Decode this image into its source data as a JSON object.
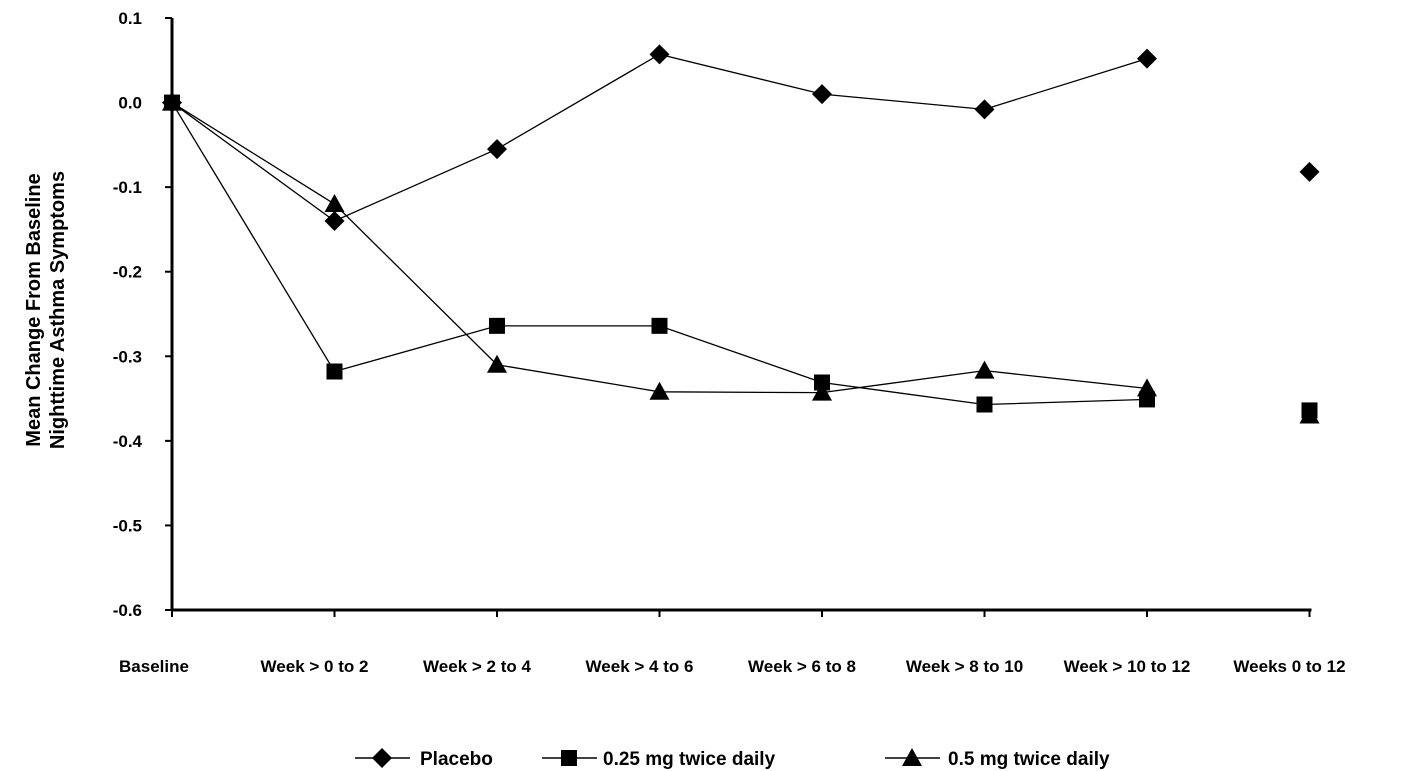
{
  "chart_data": {
    "type": "line",
    "ylabel_lines": [
      "Mean Change From Baseline",
      "Nighttime Asthma Symptoms"
    ],
    "categories": [
      "Baseline",
      "Week > 0 to 2",
      "Week > 2 to 4",
      "Week > 4 to 6",
      "Week > 6 to 8",
      "Week > 8 to 10",
      "Week > 10 to 12",
      "Weeks 0 to 12"
    ],
    "ylim": [
      -0.6,
      0.1
    ],
    "yticks": [
      0.1,
      0.0,
      -0.1,
      -0.2,
      -0.3,
      -0.4,
      -0.5,
      -0.6
    ],
    "ytick_labels": [
      "0.1",
      "0.0",
      "-0.1",
      "-0.2",
      "-0.3",
      "-0.4",
      "-0.5",
      "-0.6"
    ],
    "grid": false,
    "legend_position": "bottom",
    "series": [
      {
        "name": "Placebo",
        "marker": "diamond",
        "values": [
          0.0,
          -0.14,
          -0.055,
          0.057,
          0.01,
          -0.008,
          0.052,
          -0.082
        ],
        "connected_points": 7
      },
      {
        "name": "0.25 mg twice daily",
        "marker": "square",
        "values": [
          0.0,
          -0.318,
          -0.264,
          -0.264,
          -0.331,
          -0.357,
          -0.351,
          -0.364
        ],
        "connected_points": 7
      },
      {
        "name": "0.5 mg twice daily",
        "marker": "triangle",
        "values": [
          0.0,
          -0.12,
          -0.31,
          -0.342,
          -0.343,
          -0.317,
          -0.338,
          -0.37
        ],
        "connected_points": 7
      }
    ]
  }
}
